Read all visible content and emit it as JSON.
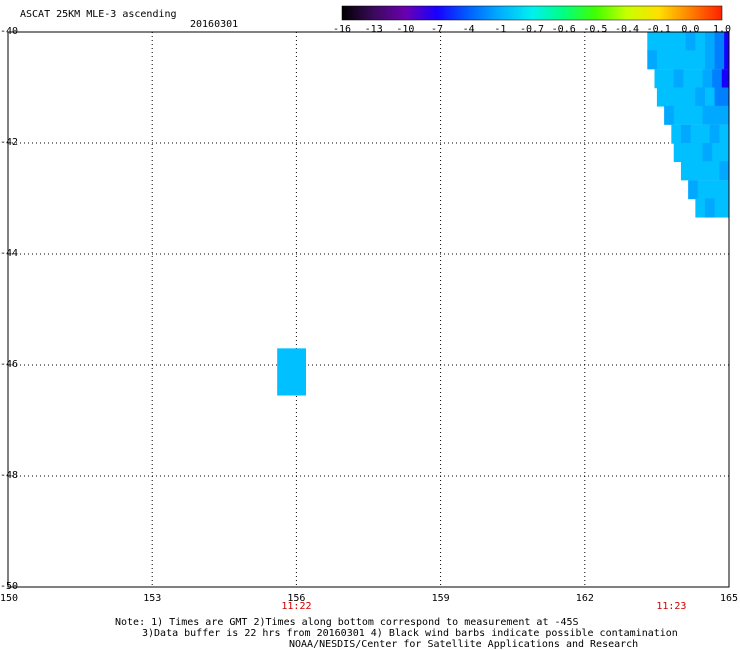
{
  "header": {
    "title": "ASCAT 25KM MLE-3 ascending",
    "date": "20160301"
  },
  "colorbar": {
    "labels": [
      "-16",
      "-13",
      "-10",
      "-7",
      "-4",
      "-1",
      "-0.7",
      "-0.6",
      "-0.5",
      "-0.4",
      "-0.1",
      "0.0",
      "1.0"
    ],
    "colors": [
      "#000000",
      "#3a0a5a",
      "#6a00b0",
      "#1800ff",
      "#0060ff",
      "#00b0ff",
      "#00f0f0",
      "#00ff80",
      "#40ff00",
      "#c8ff00",
      "#ffe000",
      "#ff8000",
      "#ff2000"
    ]
  },
  "axes": {
    "x_ticks": [
      "150",
      "153",
      "156",
      "159",
      "162",
      "165"
    ],
    "y_ticks": [
      "-40",
      "-42",
      "-44",
      "-46",
      "-48",
      "-50"
    ],
    "x_range": [
      150,
      165
    ],
    "y_range": [
      -50,
      -40
    ]
  },
  "time_labels": [
    {
      "text": "11:22",
      "lon": 156
    },
    {
      "text": "11:23",
      "lon": 163.8
    }
  ],
  "footer": {
    "line1": "Note: 1) Times are GMT 2)Times along bottom correspond to measurement at -45S",
    "line2": "3)Data buffer is 22 hrs from 20160301 4) Black wind barbs indicate possible contamination",
    "line3": "NOAA/NESDIS/Center for Satellite Applications and Research"
  },
  "swath": {
    "colors": {
      "light": "#00c0ff",
      "mid": "#00a8ff",
      "deep": "#0080ff",
      "dark": "#1800ff"
    },
    "rows": [
      {
        "lat": -40.0,
        "lon_start": 163.3
      },
      {
        "lat": -40.33,
        "lon_start": 163.3
      },
      {
        "lat": -40.67,
        "lon_start": 163.45
      },
      {
        "lat": -41.0,
        "lon_start": 163.5
      },
      {
        "lat": -41.33,
        "lon_start": 163.65
      },
      {
        "lat": -41.67,
        "lon_start": 163.8
      },
      {
        "lat": -42.0,
        "lon_start": 163.85
      },
      {
        "lat": -42.33,
        "lon_start": 164.0
      },
      {
        "lat": -42.67,
        "lon_start": 164.15
      },
      {
        "lat": -43.0,
        "lon_start": 164.3
      }
    ],
    "isolated_cell": {
      "lon": 155.6,
      "lat": -45.9,
      "color": "#00c0ff"
    }
  }
}
